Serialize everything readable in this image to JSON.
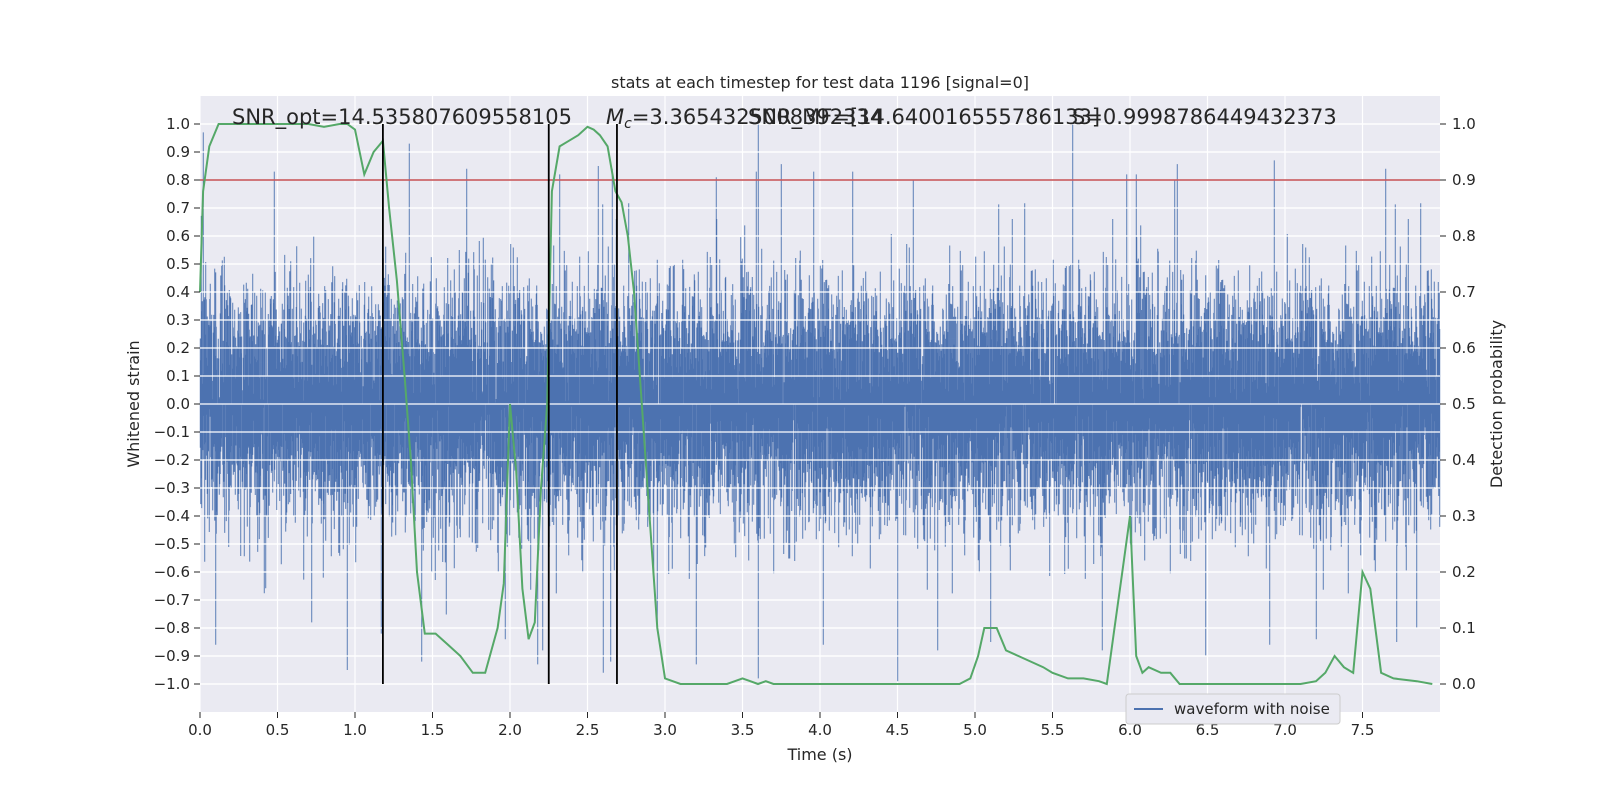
{
  "chart_data": {
    "type": "line",
    "title": "stats at each timestep for test data 1196 [signal=0]",
    "xlabel": "Time (s)",
    "ylabel": "Whitened strain",
    "y2label": "Detection probability",
    "xlim": [
      0.0,
      8.0
    ],
    "ylim": [
      -1.1,
      1.1
    ],
    "y2lim": [
      -0.05,
      1.05
    ],
    "x_ticks": [
      "0.0",
      "0.5",
      "1.0",
      "1.5",
      "2.0",
      "2.5",
      "3.0",
      "3.5",
      "4.0",
      "4.5",
      "5.0",
      "5.5",
      "6.0",
      "6.5",
      "7.0",
      "7.5"
    ],
    "y_ticks": [
      "1.0",
      "0.9",
      "0.8",
      "0.7",
      "0.6",
      "0.5",
      "0.4",
      "0.3",
      "0.2",
      "0.1",
      "0.0",
      "−0.1",
      "−0.2",
      "−0.3",
      "−0.4",
      "−0.5",
      "−0.6",
      "−0.7",
      "−0.8",
      "−0.9",
      "−1.0"
    ],
    "y2_ticks": [
      "1.0",
      "0.9",
      "0.8",
      "0.7",
      "0.6",
      "0.5",
      "0.4",
      "0.3",
      "0.2",
      "0.1",
      "0.0"
    ],
    "grid": true,
    "legend_position": "lower-right",
    "annotations": {
      "snr_opt": "SNR_opt=14.535807609558105",
      "mc": "=3.3654325008392334",
      "mc_symbol": "M",
      "mc_subscript": "c",
      "snr_mf": "SNR_MF=[14.640016555786133]",
      "s": "S=0.9998786449432373"
    },
    "threshold": {
      "value": 0.9,
      "axis": "y2",
      "color": "#c44e52"
    },
    "vertical_lines": {
      "x": [
        1.18,
        2.25,
        2.69
      ],
      "y_range": [
        -1.0,
        1.0
      ],
      "color": "#000000"
    },
    "waveform": {
      "name": "waveform with noise",
      "color": "#4c72b0",
      "sample_rate": 2048,
      "sigma": 0.2,
      "spikes": [
        [
          0.02,
          0.97
        ],
        [
          0.48,
          0.83
        ],
        [
          1.35,
          0.93
        ],
        [
          1.72,
          0.84
        ],
        [
          2.32,
          0.82
        ],
        [
          2.57,
          0.85
        ],
        [
          2.66,
          0.84
        ],
        [
          3.33,
          0.81
        ],
        [
          3.6,
          1.0
        ],
        [
          3.59,
          0.83
        ],
        [
          3.96,
          0.83
        ],
        [
          4.21,
          0.83
        ],
        [
          4.6,
          0.8
        ],
        [
          5.63,
          1.0
        ],
        [
          5.98,
          0.82
        ],
        [
          6.04,
          0.82
        ],
        [
          6.29,
          0.8
        ],
        [
          6.93,
          0.87
        ],
        [
          7.65,
          0.84
        ],
        [
          0.1,
          -0.86
        ],
        [
          0.72,
          -0.78
        ],
        [
          0.95,
          -0.95
        ],
        [
          1.17,
          -0.82
        ],
        [
          1.43,
          -0.92
        ],
        [
          1.97,
          -0.84
        ],
        [
          2.18,
          -0.93
        ],
        [
          2.21,
          -0.88
        ],
        [
          2.6,
          -0.96
        ],
        [
          2.65,
          -0.92
        ],
        [
          2.95,
          -0.8
        ],
        [
          3.2,
          -0.93
        ],
        [
          3.6,
          -0.98
        ],
        [
          4.02,
          -0.86
        ],
        [
          4.5,
          -0.99
        ],
        [
          4.76,
          -0.88
        ],
        [
          5.1,
          -0.85
        ],
        [
          5.82,
          -0.88
        ],
        [
          6.49,
          -0.9
        ],
        [
          6.9,
          -0.86
        ],
        [
          7.2,
          -0.84
        ],
        [
          7.72,
          -0.85
        ],
        [
          7.85,
          -0.8
        ]
      ]
    },
    "probability": {
      "color": "#55a868",
      "x": [
        0.0,
        0.02,
        0.06,
        0.12,
        0.2,
        0.35,
        0.55,
        0.7,
        0.8,
        0.9,
        0.95,
        1.0,
        1.06,
        1.12,
        1.18,
        1.22,
        1.27,
        1.32,
        1.36,
        1.4,
        1.45,
        1.52,
        1.6,
        1.68,
        1.76,
        1.84,
        1.88,
        1.92,
        1.96,
        2.0,
        2.04,
        2.08,
        2.12,
        2.16,
        2.2,
        2.24,
        2.27,
        2.32,
        2.38,
        2.44,
        2.5,
        2.54,
        2.58,
        2.63,
        2.68,
        2.72,
        2.76,
        2.8,
        2.85,
        2.9,
        2.95,
        3.0,
        3.1,
        3.2,
        3.3,
        3.4,
        3.45,
        3.5,
        3.55,
        3.6,
        3.65,
        3.7,
        3.8,
        3.9,
        4.0,
        4.2,
        4.4,
        4.5,
        4.6,
        4.8,
        4.9,
        4.97,
        5.02,
        5.06,
        5.1,
        5.14,
        5.2,
        5.28,
        5.36,
        5.44,
        5.5,
        5.6,
        5.7,
        5.8,
        5.85,
        5.9,
        5.95,
        6.0,
        6.04,
        6.08,
        6.12,
        6.2,
        6.26,
        6.32,
        6.4,
        6.6,
        6.8,
        7.0,
        7.1,
        7.2,
        7.26,
        7.32,
        7.38,
        7.44,
        7.5,
        7.55,
        7.62,
        7.7,
        7.85,
        7.95
      ],
      "y": [
        0.7,
        0.88,
        0.96,
        1.0,
        1.0,
        1.0,
        1.0,
        1.0,
        0.995,
        1.0,
        1.0,
        0.99,
        0.91,
        0.95,
        0.97,
        0.85,
        0.72,
        0.55,
        0.4,
        0.2,
        0.09,
        0.09,
        0.07,
        0.05,
        0.02,
        0.02,
        0.06,
        0.1,
        0.18,
        0.5,
        0.38,
        0.17,
        0.08,
        0.11,
        0.35,
        0.5,
        0.88,
        0.96,
        0.97,
        0.98,
        0.995,
        0.99,
        0.98,
        0.96,
        0.88,
        0.86,
        0.8,
        0.7,
        0.5,
        0.3,
        0.1,
        0.01,
        0.0,
        0.0,
        0.0,
        0.0,
        0.005,
        0.01,
        0.005,
        0.0,
        0.005,
        0.0,
        0.0,
        0.0,
        0.0,
        0.0,
        0.0,
        0.0,
        0.0,
        0.0,
        0.0,
        0.01,
        0.05,
        0.1,
        0.1,
        0.1,
        0.06,
        0.05,
        0.04,
        0.03,
        0.02,
        0.01,
        0.01,
        0.005,
        0.0,
        0.1,
        0.2,
        0.3,
        0.05,
        0.02,
        0.03,
        0.02,
        0.02,
        0.0,
        0.0,
        0.0,
        0.0,
        0.0,
        0.0,
        0.005,
        0.02,
        0.05,
        0.03,
        0.02,
        0.2,
        0.17,
        0.02,
        0.01,
        0.005,
        0.0
      ]
    }
  }
}
